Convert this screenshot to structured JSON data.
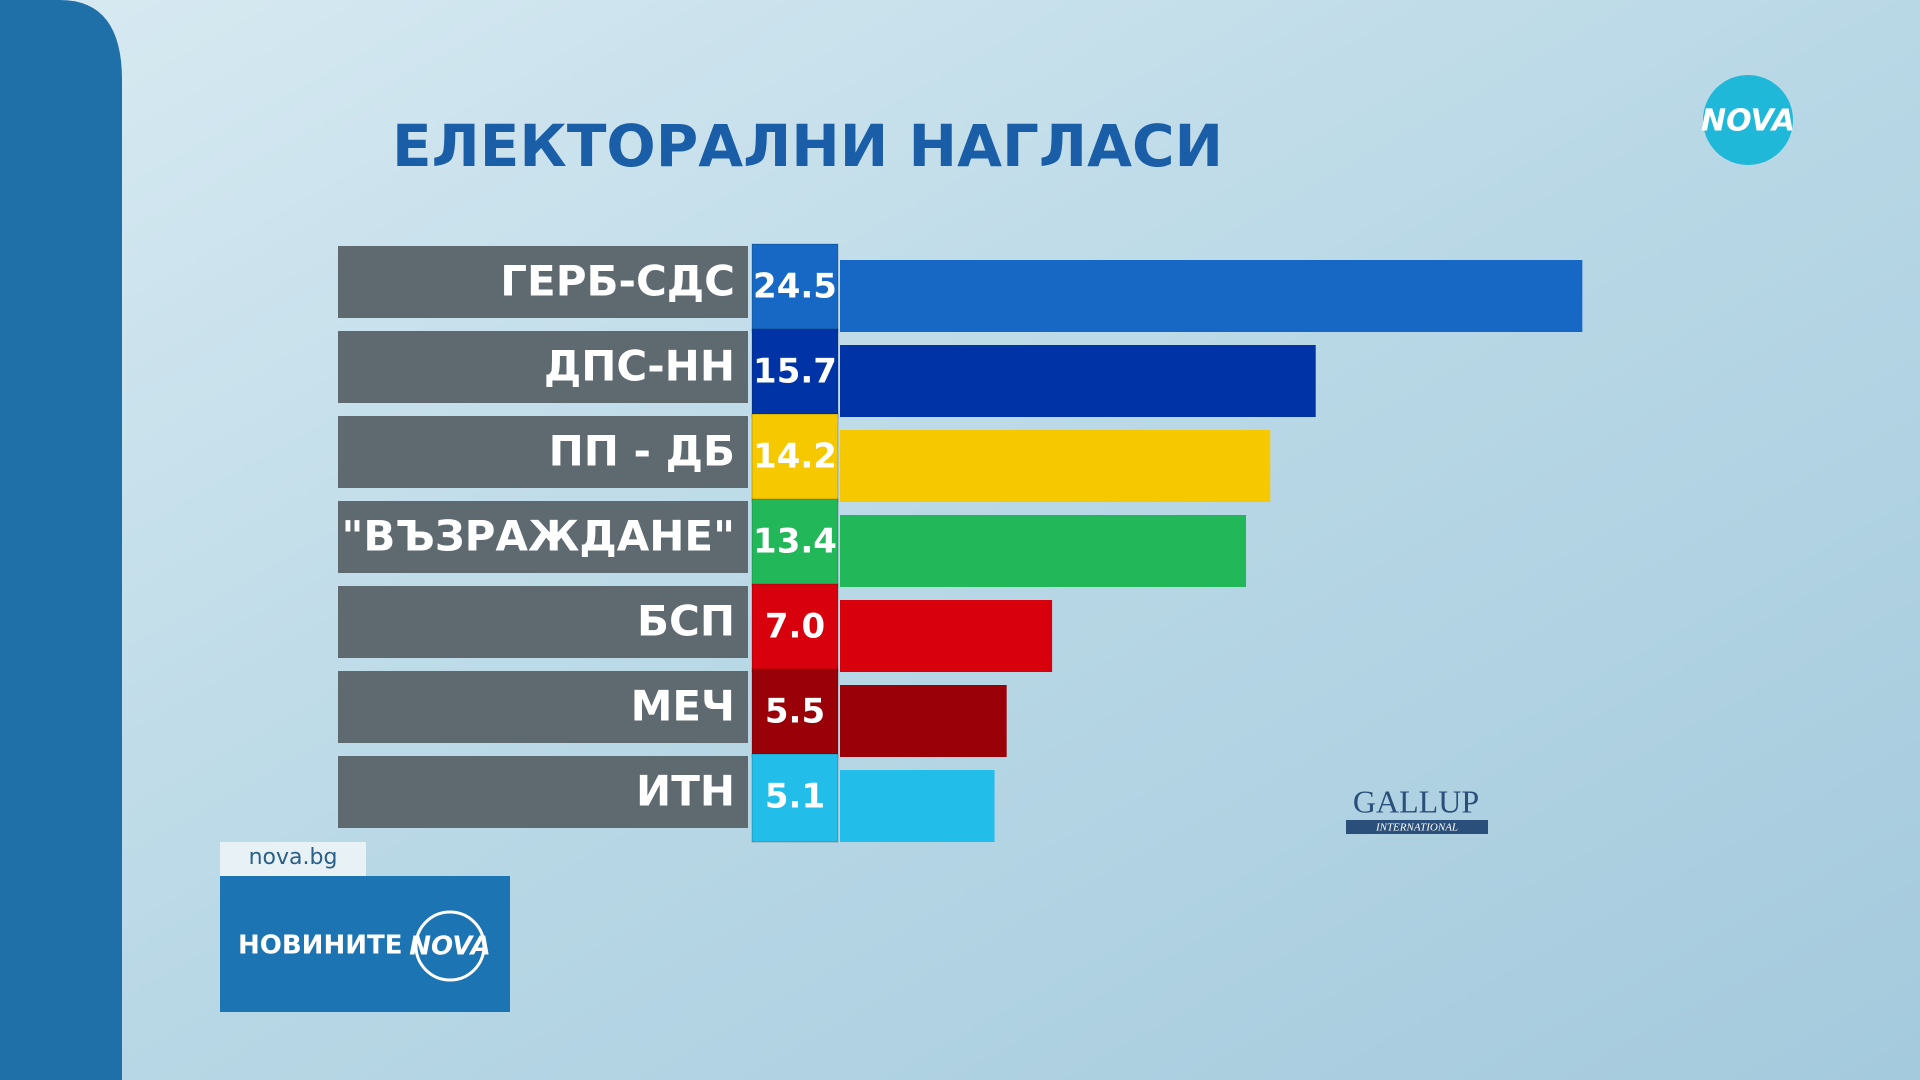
{
  "chart_data": {
    "type": "hbar",
    "title": "ЕЛЕКТОРАЛНИ НАГЛАСИ",
    "categories": [
      "ГЕРБ-СДС",
      "ДПС-НН",
      "ПП - ДБ",
      "\"ВЪЗРАЖДАНЕ\"",
      "БСП",
      "МЕЧ",
      "ИТН"
    ],
    "values": [
      24.5,
      15.7,
      14.2,
      13.4,
      7.0,
      5.5,
      5.1
    ],
    "value_labels": [
      "24.5",
      "15.7",
      "14.2",
      "13.4",
      "7.0",
      "5.5",
      "5.1"
    ],
    "colors": [
      "#1668c4",
      "#0034a6",
      "#f6c800",
      "#22b85a",
      "#d9000d",
      "#990008",
      "#22bde9"
    ]
  },
  "logo": "NOVA",
  "site": "nova.bg",
  "show": "НОВИНИТЕ",
  "show_brand": "NOVA",
  "source": "GALLUP",
  "source_sub": "INTERNATIONAL"
}
